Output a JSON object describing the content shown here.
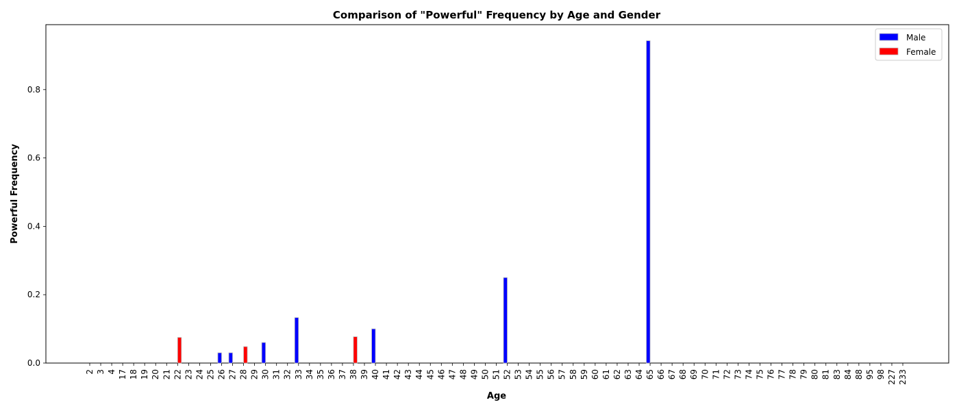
{
  "chart_data": {
    "type": "bar",
    "title": "Comparison of \"Powerful\" Frequency by Age and Gender",
    "xlabel": "Age",
    "ylabel": "Powerful Frequency",
    "ylim": [
      0,
      0.99
    ],
    "yticks": [
      "0.0",
      "0.2",
      "0.4",
      "0.6",
      "0.8"
    ],
    "ytick_values": [
      0,
      0.2,
      0.4,
      0.6,
      0.8
    ],
    "grid": false,
    "legend_position": "top-right",
    "categories": [
      "2",
      "3",
      "4",
      "17",
      "18",
      "19",
      "20",
      "21",
      "22",
      "23",
      "24",
      "25",
      "26",
      "27",
      "28",
      "29",
      "30",
      "31",
      "32",
      "33",
      "34",
      "35",
      "36",
      "37",
      "38",
      "39",
      "40",
      "41",
      "42",
      "43",
      "44",
      "45",
      "46",
      "47",
      "48",
      "49",
      "50",
      "51",
      "52",
      "53",
      "54",
      "55",
      "56",
      "57",
      "58",
      "59",
      "60",
      "61",
      "62",
      "63",
      "64",
      "65",
      "66",
      "67",
      "68",
      "69",
      "70",
      "71",
      "72",
      "73",
      "74",
      "75",
      "76",
      "77",
      "78",
      "79",
      "80",
      "81",
      "83",
      "84",
      "88",
      "95",
      "98",
      "227",
      "233"
    ],
    "series": [
      {
        "name": "Male",
        "color": "#0000ff",
        "values": [
          0,
          0,
          0,
          0,
          0,
          0,
          0,
          0,
          0,
          0,
          0,
          0,
          0.03,
          0.03,
          0,
          0,
          0.06,
          0,
          0,
          0.133,
          0,
          0,
          0,
          0,
          0,
          0,
          0.1,
          0,
          0,
          0,
          0,
          0,
          0,
          0,
          0,
          0,
          0,
          0,
          0.25,
          0,
          0,
          0,
          0,
          0,
          0,
          0,
          0,
          0,
          0,
          0,
          0,
          0.943,
          0,
          0,
          0,
          0,
          0,
          0,
          0,
          0,
          0,
          0,
          0,
          0,
          0,
          0,
          0,
          0,
          0,
          0,
          0,
          0,
          0,
          0,
          0
        ]
      },
      {
        "name": "Female",
        "color": "#ff0000",
        "values": [
          0,
          0,
          0,
          0,
          0,
          0,
          0,
          0,
          0.075,
          0,
          0,
          0,
          0,
          0,
          0.048,
          0,
          0,
          0,
          0,
          0,
          0,
          0,
          0,
          0,
          0.077,
          0,
          0,
          0,
          0,
          0,
          0,
          0,
          0,
          0,
          0,
          0,
          0,
          0,
          0,
          0,
          0,
          0,
          0,
          0,
          0,
          0,
          0,
          0,
          0,
          0,
          0,
          0,
          0,
          0,
          0,
          0,
          0,
          0,
          0,
          0,
          0,
          0,
          0,
          0,
          0,
          0,
          0,
          0,
          0,
          0,
          0,
          0,
          0,
          0,
          0
        ]
      }
    ]
  }
}
